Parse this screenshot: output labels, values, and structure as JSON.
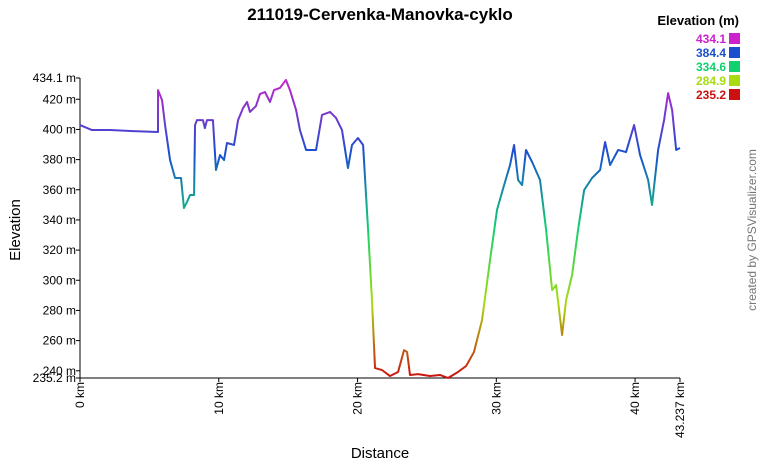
{
  "chart_data": {
    "type": "line",
    "title": "211019-Cervenka-Manovka-cyklo",
    "x_label": "Distance",
    "y_label": "Elevation",
    "credit": "created by GPSVisualizer.com",
    "legend": {
      "title": "Elevation (m)",
      "entries": [
        {
          "value": 434.1,
          "color": "#cc22cc"
        },
        {
          "value": 384.4,
          "color": "#1a4fd0"
        },
        {
          "value": 334.6,
          "color": "#10d070"
        },
        {
          "value": 284.9,
          "color": "#a8dc10"
        },
        {
          "value": 235.2,
          "color": "#cc1010"
        }
      ]
    },
    "xlim": [
      0,
      43.237
    ],
    "ylim": [
      235.2,
      434.1
    ],
    "xticks": [
      {
        "value": 0,
        "label": "0 km"
      },
      {
        "value": 10,
        "label": "10 km"
      },
      {
        "value": 20,
        "label": "20 km"
      },
      {
        "value": 30,
        "label": "30 km"
      },
      {
        "value": 40,
        "label": "40 km"
      },
      {
        "value": 43.237,
        "label": "43.237 km"
      }
    ],
    "yticks": [
      {
        "value": 235.2,
        "label": "235.2 m"
      },
      {
        "value": 240,
        "label": "240 m"
      },
      {
        "value": 260,
        "label": "260 m"
      },
      {
        "value": 280,
        "label": "280 m"
      },
      {
        "value": 300,
        "label": "300 m"
      },
      {
        "value": 320,
        "label": "320 m"
      },
      {
        "value": 340,
        "label": "340 m"
      },
      {
        "value": 360,
        "label": "360 m"
      },
      {
        "value": 380,
        "label": "380 m"
      },
      {
        "value": 400,
        "label": "400 m"
      },
      {
        "value": 420,
        "label": "420 m"
      },
      {
        "value": 434.1,
        "label": "434.1 m"
      }
    ],
    "grid": false,
    "x": [
      0,
      0.86,
      2.16,
      3.6,
      5.62,
      5.62,
      5.91,
      6.13,
      6.49,
      6.85,
      7.28,
      7.49,
      7.71,
      7.93,
      8.22,
      8.29,
      8.43,
      8.86,
      9.0,
      9.15,
      9.58,
      9.8,
      10.09,
      10.38,
      10.59,
      11.1,
      11.39,
      11.75,
      12.04,
      12.25,
      12.68,
      12.97,
      13.33,
      13.69,
      13.98,
      14.41,
      14.84,
      15.13,
      15.57,
      15.85,
      16.29,
      17.01,
      17.44,
      18.02,
      18.45,
      18.88,
      19.31,
      19.6,
      20.03,
      20.4,
      20.76,
      21.04,
      21.26,
      21.76,
      22.34,
      22.92,
      23.35,
      23.57,
      23.78,
      24.36,
      25.22,
      25.94,
      26.52,
      27.24,
      27.82,
      28.39,
      28.97,
      29.55,
      30.05,
      30.56,
      30.99,
      31.28,
      31.57,
      31.86,
      32.14,
      32.58,
      33.15,
      33.59,
      34.02,
      34.31,
      34.74,
      35.03,
      35.46,
      35.89,
      36.33,
      36.9,
      37.48,
      37.84,
      38.2,
      38.78,
      39.35,
      39.93,
      40.36,
      40.94,
      41.22,
      41.66,
      42.09,
      42.38,
      42.67,
      42.96,
      43.237
    ],
    "values": [
      402.9,
      399.6,
      399.6,
      399,
      398.3,
      426.1,
      419.5,
      402.9,
      379.7,
      367.8,
      367.8,
      347.9,
      351.9,
      356.5,
      356.5,
      402.9,
      406.2,
      406.2,
      400.9,
      406.2,
      406.2,
      373.1,
      383,
      379.7,
      391,
      389.7,
      406.2,
      414.2,
      418.2,
      411.6,
      415.5,
      423.5,
      424.8,
      418.2,
      426.1,
      427.5,
      432.8,
      426.1,
      412.9,
      399.6,
      386.4,
      386.4,
      409.6,
      411.6,
      407.6,
      399.6,
      374.4,
      389.7,
      394.3,
      389.7,
      333.3,
      286.9,
      241.8,
      240.5,
      236.5,
      239.2,
      253.7,
      252.4,
      237.2,
      237.8,
      236.5,
      237.2,
      235.2,
      239.2,
      243.1,
      252.4,
      273.6,
      313.4,
      346.6,
      363.1,
      376.4,
      389.7,
      366.5,
      363.1,
      386.4,
      378.4,
      366.5,
      333.3,
      293.5,
      296.8,
      263.7,
      286.9,
      303.5,
      333.3,
      359.8,
      367.8,
      373.1,
      391.7,
      376.4,
      386.4,
      385,
      402.9,
      383,
      366.5,
      349.9,
      386.4,
      406.2,
      424.1,
      412.9,
      386.4,
      387.7
    ]
  }
}
